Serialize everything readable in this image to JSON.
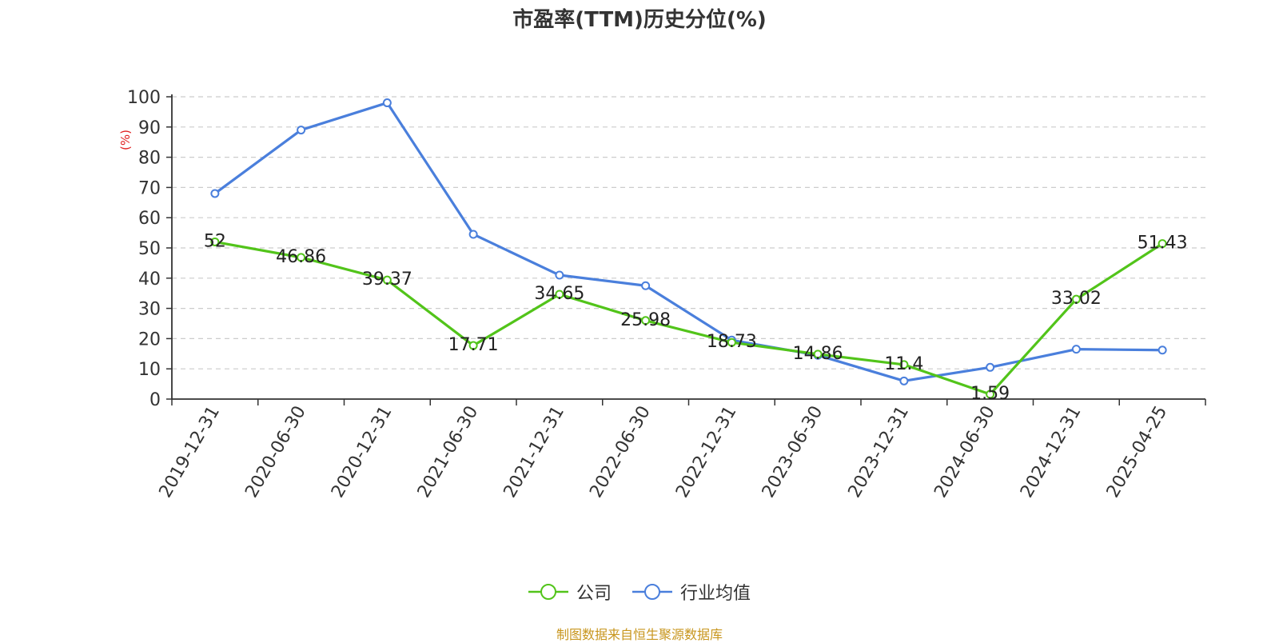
{
  "chart_data": {
    "type": "line",
    "title": "市盈率(TTM)历史分位(%)",
    "ylabel": "(%)",
    "ylim": [
      0,
      100
    ],
    "yticks": [
      0,
      10,
      20,
      30,
      40,
      50,
      60,
      70,
      80,
      90,
      100
    ],
    "grid": true,
    "legend_position": "bottom",
    "categories": [
      "2019-12-31",
      "2020-06-30",
      "2020-12-31",
      "2021-06-30",
      "2021-12-31",
      "2022-06-30",
      "2022-12-31",
      "2023-06-30",
      "2023-12-31",
      "2024-06-30",
      "2024-12-31",
      "2025-04-25"
    ],
    "series": [
      {
        "name": "公司",
        "color": "#52c41a",
        "values": [
          52,
          46.86,
          39.37,
          17.71,
          34.65,
          25.98,
          18.73,
          14.86,
          11.4,
          1.59,
          33.02,
          51.43
        ],
        "labels": [
          "52",
          "46.86",
          "39.37",
          "17.71",
          "34.65",
          "25.98",
          "18.73",
          "14.86",
          "11.4",
          "1.59",
          "33.02",
          "51.43"
        ]
      },
      {
        "name": "行业均值",
        "color": "#4a7fdc",
        "values": [
          68,
          89,
          98,
          54.5,
          41,
          37.5,
          19.5,
          14.5,
          6,
          10.5,
          16.5,
          16.2
        ]
      }
    ]
  },
  "source": "制图数据来自恒生聚源数据库"
}
